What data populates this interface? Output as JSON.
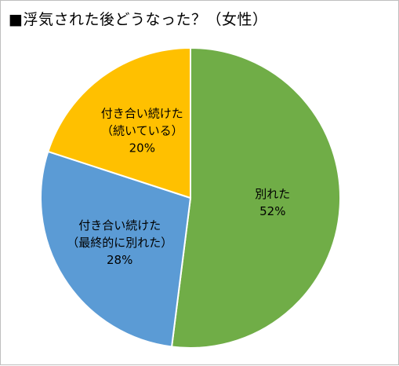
{
  "chart_data": {
    "type": "pie",
    "title": "■浮気された後どうなった？（女性）",
    "slices": [
      {
        "label_lines": [
          "別れた"
        ],
        "value": 52,
        "value_label": "52%",
        "color": "#70ad47"
      },
      {
        "label_lines": [
          "付き合い続けた",
          "（最終的に別れた）"
        ],
        "value": 28,
        "value_label": "28%",
        "color": "#5b9bd5"
      },
      {
        "label_lines": [
          "付き合い続けた",
          "（続いている）"
        ],
        "value": 20,
        "value_label": "20%",
        "color": "#ffc000"
      }
    ],
    "start_angle_deg": 0,
    "direction": "clockwise",
    "legend": "none",
    "slice_border_color": "#ffffff"
  }
}
